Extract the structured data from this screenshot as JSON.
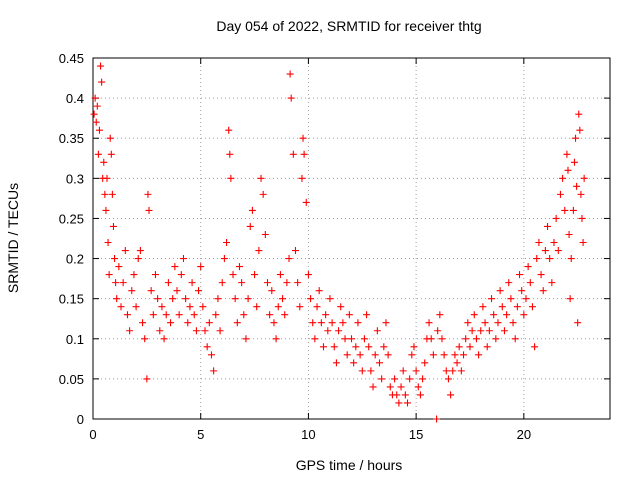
{
  "chart_data": {
    "type": "scatter",
    "title": "Day 054 of 2022, SRMTID for receiver thtg",
    "xlabel": "GPS time / hours",
    "ylabel": "SRMTID / TECUs",
    "xlim": [
      0,
      24
    ],
    "ylim": [
      0,
      0.45
    ],
    "xticks": [
      0,
      5,
      10,
      15,
      20
    ],
    "xtick_labels": [
      "0",
      "5",
      "10",
      "15",
      "20"
    ],
    "yticks": [
      0,
      0.05,
      0.1,
      0.15,
      0.2,
      0.25,
      0.3,
      0.35,
      0.4,
      0.45
    ],
    "ytick_labels": [
      "0",
      "0.05",
      "0.1",
      "0.15",
      "0.2",
      "0.25",
      "0.3",
      "0.35",
      "0.4",
      "0.45"
    ],
    "grid": true,
    "legend": "none",
    "marker": "plus",
    "series": [
      {
        "color": "#ff0000",
        "points": [
          [
            0.05,
            0.38
          ],
          [
            0.1,
            0.4
          ],
          [
            0.15,
            0.37
          ],
          [
            0.2,
            0.39
          ],
          [
            0.25,
            0.33
          ],
          [
            0.3,
            0.36
          ],
          [
            0.35,
            0.44
          ],
          [
            0.4,
            0.42
          ],
          [
            0.45,
            0.3
          ],
          [
            0.5,
            0.32
          ],
          [
            0.55,
            0.28
          ],
          [
            0.6,
            0.26
          ],
          [
            0.65,
            0.3
          ],
          [
            0.7,
            0.22
          ],
          [
            0.75,
            0.18
          ],
          [
            0.8,
            0.35
          ],
          [
            0.85,
            0.33
          ],
          [
            0.9,
            0.28
          ],
          [
            0.95,
            0.24
          ],
          [
            1.0,
            0.2
          ],
          [
            1.05,
            0.17
          ],
          [
            1.1,
            0.15
          ],
          [
            1.2,
            0.19
          ],
          [
            1.3,
            0.14
          ],
          [
            1.4,
            0.17
          ],
          [
            1.5,
            0.21
          ],
          [
            1.6,
            0.13
          ],
          [
            1.7,
            0.11
          ],
          [
            1.8,
            0.16
          ],
          [
            1.9,
            0.18
          ],
          [
            2.0,
            0.14
          ],
          [
            2.1,
            0.2
          ],
          [
            2.2,
            0.21
          ],
          [
            2.3,
            0.12
          ],
          [
            2.4,
            0.1
          ],
          [
            2.5,
            0.05
          ],
          [
            2.55,
            0.28
          ],
          [
            2.6,
            0.26
          ],
          [
            2.7,
            0.16
          ],
          [
            2.8,
            0.13
          ],
          [
            2.9,
            0.18
          ],
          [
            3.0,
            0.15
          ],
          [
            3.1,
            0.11
          ],
          [
            3.2,
            0.14
          ],
          [
            3.3,
            0.1
          ],
          [
            3.4,
            0.13
          ],
          [
            3.5,
            0.17
          ],
          [
            3.6,
            0.12
          ],
          [
            3.7,
            0.15
          ],
          [
            3.8,
            0.19
          ],
          [
            3.9,
            0.16
          ],
          [
            4.0,
            0.13
          ],
          [
            4.1,
            0.18
          ],
          [
            4.2,
            0.2
          ],
          [
            4.3,
            0.15
          ],
          [
            4.4,
            0.12
          ],
          [
            4.5,
            0.14
          ],
          [
            4.6,
            0.17
          ],
          [
            4.7,
            0.13
          ],
          [
            4.8,
            0.11
          ],
          [
            4.9,
            0.16
          ],
          [
            5.0,
            0.19
          ],
          [
            5.1,
            0.14
          ],
          [
            5.2,
            0.11
          ],
          [
            5.3,
            0.09
          ],
          [
            5.4,
            0.12
          ],
          [
            5.5,
            0.08
          ],
          [
            5.6,
            0.06
          ],
          [
            5.7,
            0.13
          ],
          [
            5.8,
            0.15
          ],
          [
            5.9,
            0.11
          ],
          [
            6.0,
            0.17
          ],
          [
            6.1,
            0.2
          ],
          [
            6.2,
            0.22
          ],
          [
            6.3,
            0.36
          ],
          [
            6.35,
            0.33
          ],
          [
            6.4,
            0.3
          ],
          [
            6.5,
            0.18
          ],
          [
            6.6,
            0.15
          ],
          [
            6.7,
            0.12
          ],
          [
            6.8,
            0.19
          ],
          [
            6.9,
            0.17
          ],
          [
            7.0,
            0.13
          ],
          [
            7.1,
            0.1
          ],
          [
            7.2,
            0.15
          ],
          [
            7.3,
            0.24
          ],
          [
            7.4,
            0.26
          ],
          [
            7.5,
            0.18
          ],
          [
            7.6,
            0.14
          ],
          [
            7.7,
            0.21
          ],
          [
            7.8,
            0.3
          ],
          [
            7.9,
            0.28
          ],
          [
            8.0,
            0.23
          ],
          [
            8.1,
            0.17
          ],
          [
            8.2,
            0.13
          ],
          [
            8.3,
            0.16
          ],
          [
            8.4,
            0.12
          ],
          [
            8.5,
            0.1
          ],
          [
            8.6,
            0.14
          ],
          [
            8.7,
            0.18
          ],
          [
            8.8,
            0.15
          ],
          [
            8.9,
            0.13
          ],
          [
            9.0,
            0.17
          ],
          [
            9.1,
            0.2
          ],
          [
            9.15,
            0.43
          ],
          [
            9.2,
            0.4
          ],
          [
            9.3,
            0.33
          ],
          [
            9.4,
            0.21
          ],
          [
            9.5,
            0.17
          ],
          [
            9.6,
            0.14
          ],
          [
            9.7,
            0.3
          ],
          [
            9.75,
            0.35
          ],
          [
            9.8,
            0.33
          ],
          [
            9.9,
            0.27
          ],
          [
            10.0,
            0.18
          ],
          [
            10.1,
            0.15
          ],
          [
            10.2,
            0.12
          ],
          [
            10.3,
            0.1
          ],
          [
            10.4,
            0.14
          ],
          [
            10.5,
            0.16
          ],
          [
            10.6,
            0.12
          ],
          [
            10.7,
            0.09
          ],
          [
            10.8,
            0.13
          ],
          [
            10.9,
            0.11
          ],
          [
            11.0,
            0.15
          ],
          [
            11.1,
            0.12
          ],
          [
            11.2,
            0.09
          ],
          [
            11.3,
            0.07
          ],
          [
            11.4,
            0.11
          ],
          [
            11.5,
            0.14
          ],
          [
            11.6,
            0.12
          ],
          [
            11.7,
            0.1
          ],
          [
            11.8,
            0.08
          ],
          [
            11.9,
            0.13
          ],
          [
            12.0,
            0.1
          ],
          [
            12.1,
            0.07
          ],
          [
            12.2,
            0.09
          ],
          [
            12.3,
            0.12
          ],
          [
            12.4,
            0.08
          ],
          [
            12.5,
            0.06
          ],
          [
            12.6,
            0.1
          ],
          [
            12.7,
            0.13
          ],
          [
            12.8,
            0.09
          ],
          [
            12.9,
            0.06
          ],
          [
            13.0,
            0.04
          ],
          [
            13.1,
            0.08
          ],
          [
            13.2,
            0.11
          ],
          [
            13.3,
            0.07
          ],
          [
            13.4,
            0.05
          ],
          [
            13.5,
            0.09
          ],
          [
            13.6,
            0.12
          ],
          [
            13.7,
            0.08
          ],
          [
            13.8,
            0.04
          ],
          [
            13.9,
            0.03
          ],
          [
            14.0,
            0.05
          ],
          [
            14.1,
            0.03
          ],
          [
            14.2,
            0.02
          ],
          [
            14.3,
            0.04
          ],
          [
            14.4,
            0.06
          ],
          [
            14.5,
            0.03
          ],
          [
            14.6,
            0.02
          ],
          [
            14.7,
            0.05
          ],
          [
            14.8,
            0.08
          ],
          [
            14.9,
            0.09
          ],
          [
            15.0,
            0.06
          ],
          [
            15.1,
            0.04
          ],
          [
            15.2,
            0.03
          ],
          [
            15.3,
            0.05
          ],
          [
            15.4,
            0.07
          ],
          [
            15.5,
            0.1
          ],
          [
            15.6,
            0.12
          ],
          [
            15.7,
            0.1
          ],
          [
            15.8,
            0.08
          ],
          [
            15.95,
            0.0
          ],
          [
            16.0,
            0.11
          ],
          [
            16.1,
            0.13
          ],
          [
            16.2,
            0.1
          ],
          [
            16.3,
            0.08
          ],
          [
            16.4,
            0.06
          ],
          [
            16.5,
            0.05
          ],
          [
            16.6,
            0.03
          ],
          [
            16.7,
            0.06
          ],
          [
            16.8,
            0.08
          ],
          [
            16.9,
            0.07
          ],
          [
            17.0,
            0.09
          ],
          [
            17.1,
            0.06
          ],
          [
            17.2,
            0.08
          ],
          [
            17.3,
            0.1
          ],
          [
            17.4,
            0.12
          ],
          [
            17.5,
            0.09
          ],
          [
            17.6,
            0.11
          ],
          [
            17.7,
            0.13
          ],
          [
            17.8,
            0.1
          ],
          [
            17.9,
            0.08
          ],
          [
            18.0,
            0.11
          ],
          [
            18.1,
            0.14
          ],
          [
            18.2,
            0.12
          ],
          [
            18.3,
            0.09
          ],
          [
            18.4,
            0.11
          ],
          [
            18.5,
            0.15
          ],
          [
            18.6,
            0.13
          ],
          [
            18.7,
            0.1
          ],
          [
            18.8,
            0.12
          ],
          [
            18.9,
            0.16
          ],
          [
            19.0,
            0.14
          ],
          [
            19.1,
            0.11
          ],
          [
            19.2,
            0.13
          ],
          [
            19.3,
            0.17
          ],
          [
            19.4,
            0.15
          ],
          [
            19.5,
            0.12
          ],
          [
            19.6,
            0.1
          ],
          [
            19.7,
            0.14
          ],
          [
            19.8,
            0.18
          ],
          [
            19.9,
            0.16
          ],
          [
            20.0,
            0.13
          ],
          [
            20.1,
            0.15
          ],
          [
            20.2,
            0.19
          ],
          [
            20.3,
            0.17
          ],
          [
            20.4,
            0.14
          ],
          [
            20.5,
            0.09
          ],
          [
            20.6,
            0.2
          ],
          [
            20.7,
            0.22
          ],
          [
            20.8,
            0.18
          ],
          [
            20.9,
            0.16
          ],
          [
            21.0,
            0.21
          ],
          [
            21.1,
            0.24
          ],
          [
            21.2,
            0.2
          ],
          [
            21.3,
            0.17
          ],
          [
            21.4,
            0.22
          ],
          [
            21.5,
            0.25
          ],
          [
            21.6,
            0.21
          ],
          [
            21.7,
            0.28
          ],
          [
            21.8,
            0.3
          ],
          [
            21.9,
            0.26
          ],
          [
            22.0,
            0.33
          ],
          [
            22.05,
            0.31
          ],
          [
            22.1,
            0.23
          ],
          [
            22.15,
            0.15
          ],
          [
            22.2,
            0.2
          ],
          [
            22.3,
            0.26
          ],
          [
            22.35,
            0.32
          ],
          [
            22.4,
            0.35
          ],
          [
            22.45,
            0.29
          ],
          [
            22.5,
            0.12
          ],
          [
            22.55,
            0.38
          ],
          [
            22.6,
            0.36
          ],
          [
            22.65,
            0.28
          ],
          [
            22.7,
            0.25
          ],
          [
            22.75,
            0.22
          ],
          [
            22.8,
            0.3
          ]
        ]
      }
    ]
  }
}
